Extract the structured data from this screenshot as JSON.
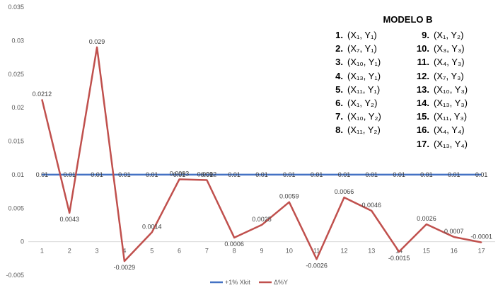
{
  "chart_data": {
    "type": "line",
    "categories": [
      "1",
      "2",
      "3",
      "4",
      "5",
      "6",
      "7",
      "8",
      "9",
      "10",
      "11",
      "12",
      "13",
      "14",
      "15",
      "16",
      "17"
    ],
    "ylim": [
      -0.005,
      0.035
    ],
    "yticks": [
      "-0.005",
      "0",
      "0.005",
      "0.01",
      "0.015",
      "0.02",
      "0.025",
      "0.03",
      "0.035"
    ],
    "yticks_values": [
      -0.005,
      0,
      0.005,
      0.01,
      0.015,
      0.02,
      0.025,
      0.03,
      0.035
    ],
    "grid": false,
    "legend": "bottom",
    "series": [
      {
        "name": "+1% Xkit",
        "color": "#4472c4",
        "values": [
          0.01,
          0.01,
          0.01,
          0.01,
          0.01,
          0.01,
          0.01,
          0.01,
          0.01,
          0.01,
          0.01,
          0.01,
          0.01,
          0.01,
          0.01,
          0.01,
          0.01
        ],
        "labels": [
          "0.01",
          "0.01",
          "0.01",
          "0.01",
          "0.01",
          "0.01",
          "0.01",
          "0.01",
          "0.01",
          "0.01",
          "0.01",
          "0.01",
          "0.01",
          "0.01",
          "0.01",
          "0.01",
          "0.01"
        ]
      },
      {
        "name": "Δ%Y",
        "color": "#c0504d",
        "values": [
          0.0212,
          0.0043,
          0.029,
          -0.0029,
          0.0014,
          0.0093,
          0.0092,
          0.0006,
          0.0025,
          0.0059,
          -0.0026,
          0.0066,
          0.0046,
          -0.0015,
          0.0026,
          0.0007,
          -0.0001
        ],
        "labels": [
          "0.0212",
          "0.0043",
          "0.029",
          "-0.0029",
          "0.0014",
          "0.0093",
          "0.0092",
          "0.0006",
          "0.0025",
          "0.0059",
          "-0.0026",
          "0.0066",
          "0.0046",
          "-0.0015",
          "0.0026",
          "0.0007",
          "-0.0001"
        ]
      }
    ]
  },
  "model": {
    "title": "MODELO B",
    "items": [
      {
        "num": "1.",
        "pair": "(X₁, Y₁)"
      },
      {
        "num": "2.",
        "pair": "(X₇, Y₁)"
      },
      {
        "num": "3.",
        "pair": "(X₁₀, Y₁)"
      },
      {
        "num": "4.",
        "pair": "(X₁₃, Y₁)"
      },
      {
        "num": "5.",
        "pair": "(X₁₁, Y₁)"
      },
      {
        "num": "6.",
        "pair": "(X₁, Y₂)"
      },
      {
        "num": "7.",
        "pair": "(X₁₀, Y₂)"
      },
      {
        "num": "8.",
        "pair": "(X₁₁, Y₂)"
      },
      {
        "num": "9.",
        "pair": "(X₁, Y₂)"
      },
      {
        "num": "10.",
        "pair": "(X₃, Y₃)"
      },
      {
        "num": "11.",
        "pair": "(X₄, Y₃)"
      },
      {
        "num": "12.",
        "pair": "(X₇, Y₃)"
      },
      {
        "num": "13.",
        "pair": "(X₁₀, Y₃)"
      },
      {
        "num": "14.",
        "pair": "(X₁₃, Y₃)"
      },
      {
        "num": "15.",
        "pair": "(X₁₁, Y₃)"
      },
      {
        "num": "16.",
        "pair": "(X₄, Y₄)"
      },
      {
        "num": "17.",
        "pair": "(X₁₃, Y₄)"
      }
    ]
  }
}
